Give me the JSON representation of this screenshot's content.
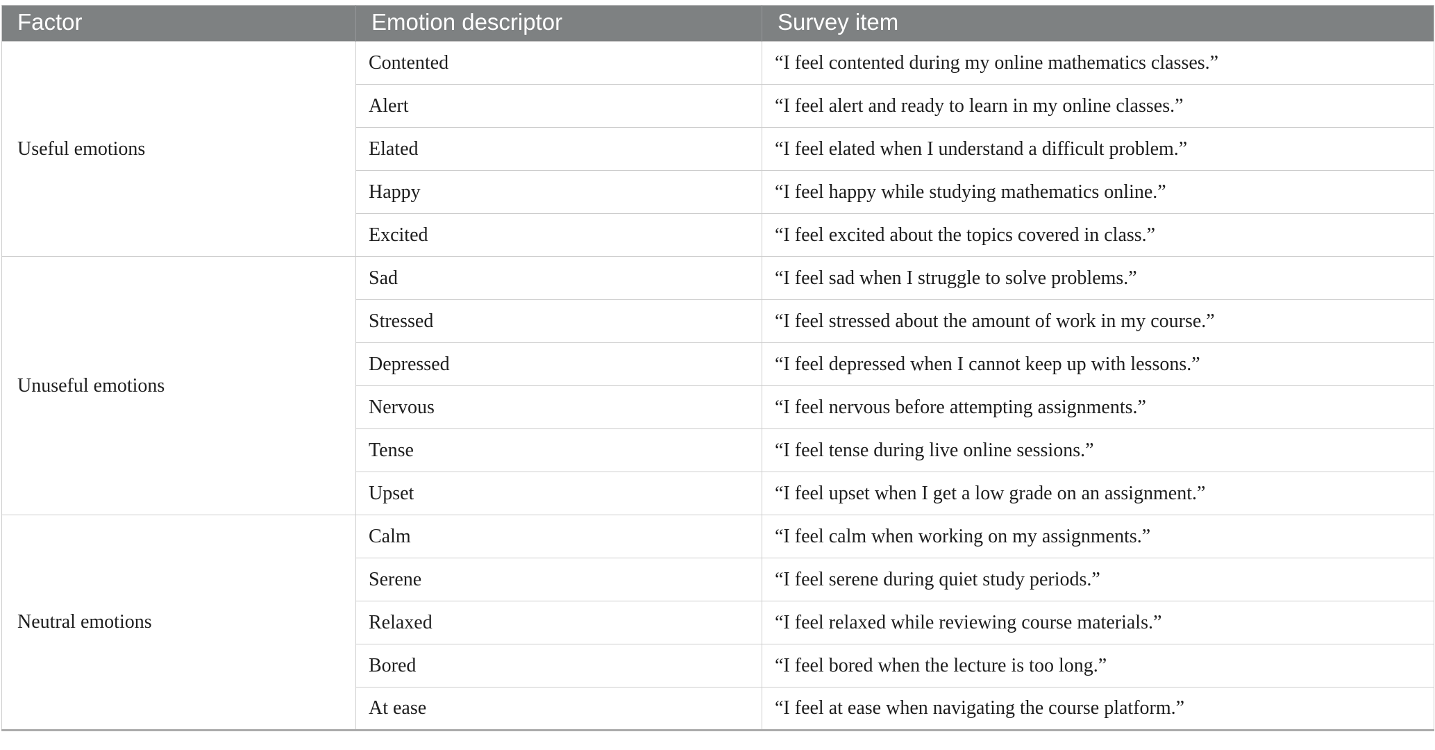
{
  "table": {
    "headers": [
      "Factor",
      "Emotion descriptor",
      "Survey item"
    ],
    "groups": [
      {
        "factor": "Useful emotions",
        "rows": [
          {
            "descriptor": "Contented",
            "item": "“I feel contented during my online mathematics classes.”"
          },
          {
            "descriptor": "Alert",
            "item": "“I feel alert and ready to learn in my online classes.”"
          },
          {
            "descriptor": "Elated",
            "item": "“I feel elated when I understand a difficult problem.”"
          },
          {
            "descriptor": "Happy",
            "item": "“I feel happy while studying mathematics online.”"
          },
          {
            "descriptor": "Excited",
            "item": "“I feel excited about the topics covered in class.”"
          }
        ]
      },
      {
        "factor": "Unuseful emotions",
        "rows": [
          {
            "descriptor": "Sad",
            "item": "“I feel sad when I struggle to solve problems.”"
          },
          {
            "descriptor": "Stressed",
            "item": "“I feel stressed about the amount of work in my course.”"
          },
          {
            "descriptor": "Depressed",
            "item": "“I feel depressed when I cannot keep up with lessons.”"
          },
          {
            "descriptor": "Nervous",
            "item": "“I feel nervous before attempting assignments.”"
          },
          {
            "descriptor": "Tense",
            "item": "“I feel tense during live online sessions.”"
          },
          {
            "descriptor": "Upset",
            "item": "“I feel upset when I get a low grade on an assignment.”"
          }
        ]
      },
      {
        "factor": "Neutral emotions",
        "rows": [
          {
            "descriptor": "Calm",
            "item": "“I feel calm when working on my assignments.”"
          },
          {
            "descriptor": "Serene",
            "item": "“I feel serene during quiet study periods.”"
          },
          {
            "descriptor": "Relaxed",
            "item": "“I feel relaxed while reviewing course materials.”"
          },
          {
            "descriptor": "Bored",
            "item": "“I feel bored when the lecture is too long.”"
          },
          {
            "descriptor": "At ease",
            "item": "“I feel at ease when navigating the course platform.”"
          }
        ]
      }
    ]
  },
  "colors": {
    "header_bg": "#7e8182",
    "header_text": "#ffffff",
    "body_text": "#1e1e1e",
    "border": "#cdcdcd",
    "bottom_rule": "#ababab"
  }
}
